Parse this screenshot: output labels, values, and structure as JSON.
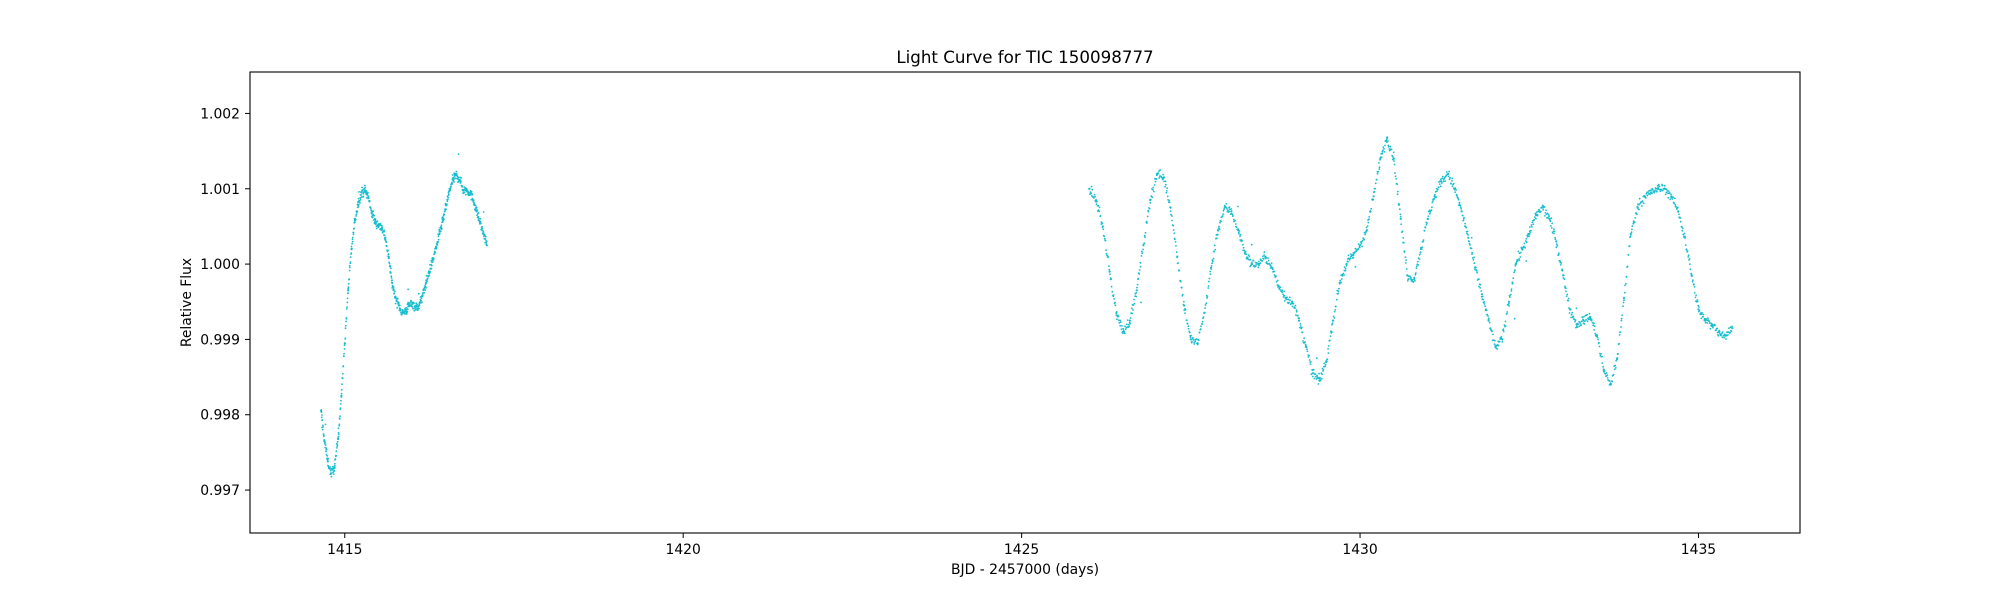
{
  "chart_data": {
    "type": "scatter",
    "title": "Light Curve for TIC 150098777",
    "xlabel": "BJD - 2457000 (days)",
    "ylabel": "Relative Flux",
    "xlim": [
      1413.6,
      1436.5
    ],
    "ylim": [
      0.99643,
      1.00255
    ],
    "x_ticks": [
      1415,
      1420,
      1425,
      1430,
      1435
    ],
    "x_tick_labels": [
      "1415",
      "1420",
      "1425",
      "1430",
      "1435"
    ],
    "y_ticks": [
      0.997,
      0.998,
      0.999,
      1.0,
      1.001,
      1.002
    ],
    "y_tick_labels": [
      "0.997",
      "0.998",
      "0.999",
      "1.000",
      "1.001",
      "1.002"
    ],
    "grid": false,
    "marker_color": "#17becf",
    "series": [
      {
        "x": [
          1414.65,
          1414.7,
          1414.75,
          1414.8,
          1414.85,
          1414.9,
          1414.95,
          1415.0,
          1415.05,
          1415.1,
          1415.15,
          1415.2,
          1415.25,
          1415.3,
          1415.35,
          1415.4,
          1415.45,
          1415.5,
          1415.55,
          1415.6,
          1415.65,
          1415.7,
          1415.75,
          1415.8,
          1415.85,
          1415.9,
          1415.95,
          1416.0,
          1416.05,
          1416.1,
          1416.15,
          1416.2,
          1416.25,
          1416.3,
          1416.35,
          1416.4,
          1416.45,
          1416.5,
          1416.55,
          1416.6,
          1416.65,
          1416.7,
          1416.75,
          1416.8,
          1416.85,
          1416.9,
          1416.95,
          1417.0,
          1417.05,
          1417.1
        ],
        "values": [
          0.99805,
          0.99765,
          0.99738,
          0.99722,
          0.9973,
          0.99768,
          0.99825,
          0.99895,
          0.99965,
          1.0002,
          1.00058,
          1.00082,
          1.00095,
          1.00098,
          1.00088,
          1.00068,
          1.00056,
          1.00052,
          1.00048,
          1.00035,
          1.00008,
          0.99975,
          0.99955,
          0.99945,
          0.99935,
          0.99938,
          0.99945,
          0.99948,
          0.99942,
          0.99945,
          0.99958,
          0.99975,
          0.9999,
          1.00005,
          1.00022,
          1.0004,
          1.00058,
          1.00078,
          1.00098,
          1.00112,
          1.00118,
          1.00112,
          1.00098,
          1.00098,
          1.00095,
          1.00085,
          1.0007,
          1.00055,
          1.0004,
          1.00025
        ]
      },
      {
        "x": [
          1426.0,
          1426.1,
          1426.2,
          1426.3,
          1426.4,
          1426.5,
          1426.6,
          1426.7,
          1426.8,
          1426.9,
          1427.0,
          1427.1,
          1427.2,
          1427.3,
          1427.4,
          1427.5,
          1427.6,
          1427.7,
          1427.8,
          1427.9,
          1428.0,
          1428.1,
          1428.2,
          1428.3,
          1428.4,
          1428.5,
          1428.6,
          1428.7,
          1428.8,
          1428.9,
          1429.0,
          1429.1,
          1429.2,
          1429.3,
          1429.4,
          1429.5,
          1429.6,
          1429.7,
          1429.8,
          1429.9,
          1430.0,
          1430.1,
          1430.2,
          1430.3,
          1430.4,
          1430.5,
          1430.6,
          1430.7,
          1430.8,
          1430.9,
          1431.0,
          1431.1,
          1431.2,
          1431.3,
          1431.4,
          1431.5,
          1431.6,
          1431.7,
          1431.8,
          1431.9,
          1432.0,
          1432.1,
          1432.2,
          1432.3,
          1432.4,
          1432.5,
          1432.6,
          1432.7,
          1432.8,
          1432.9,
          1433.0,
          1433.1,
          1433.2,
          1433.3,
          1433.4,
          1433.5,
          1433.6,
          1433.7,
          1433.8,
          1433.9,
          1434.0,
          1434.1,
          1434.2,
          1434.3,
          1434.4,
          1434.5,
          1434.6,
          1434.7,
          1434.8,
          1434.9,
          1435.0,
          1435.1,
          1435.2,
          1435.3,
          1435.4,
          1435.5
        ],
        "values": [
          1.001,
          1.00085,
          1.0005,
          0.9999,
          0.99935,
          0.9991,
          0.99925,
          0.99965,
          1.00025,
          1.00085,
          1.0012,
          1.00115,
          1.00075,
          1.0001,
          0.99945,
          0.999,
          0.99895,
          0.99935,
          0.99995,
          1.00045,
          1.00075,
          1.0007,
          1.00045,
          1.00015,
          1.0,
          1.0,
          1.0001,
          0.99995,
          0.9997,
          0.99955,
          0.9995,
          0.99925,
          0.9989,
          0.99855,
          0.99845,
          0.9987,
          0.99925,
          0.99975,
          1.0,
          1.00012,
          1.00025,
          1.00045,
          1.0009,
          1.0014,
          1.00168,
          1.0014,
          1.0006,
          0.99985,
          0.9998,
          1.0002,
          1.0006,
          1.0009,
          1.0011,
          1.0012,
          1.001,
          1.0007,
          1.00035,
          0.99995,
          0.9996,
          0.99925,
          0.9989,
          0.999,
          0.9995,
          1.0,
          1.0002,
          1.0004,
          1.00065,
          1.00075,
          1.0006,
          1.0003,
          0.99985,
          0.9994,
          0.9992,
          0.99925,
          0.9993,
          0.99905,
          0.9986,
          0.9984,
          0.99875,
          0.99955,
          1.0004,
          1.00075,
          1.0009,
          1.00095,
          1.001,
          1.001,
          1.0009,
          1.0007,
          1.00035,
          0.99985,
          0.9994,
          0.99925,
          0.9992,
          0.9991,
          0.99905,
          0.99915
        ]
      }
    ]
  }
}
